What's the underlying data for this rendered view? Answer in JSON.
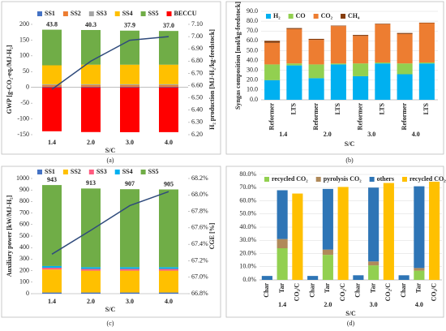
{
  "chart_data": [
    {
      "type": "bar",
      "stacked": true,
      "panel_label": "(a)",
      "x_label": "S/C",
      "y_label": "GWP [g-CO₂-eq./MJ-H₂]",
      "y2_label": "H₂ production [MJ-H₂/kg-feedstock]",
      "categories": [
        "1.4",
        "2.0",
        "3.0",
        "4.0"
      ],
      "series": [
        {
          "name": "SS1",
          "color": "#4472c4",
          "values": [
            2,
            2,
            2,
            2
          ]
        },
        {
          "name": "SS2",
          "color": "#ed7d31",
          "values": [
            5,
            5,
            5,
            5
          ]
        },
        {
          "name": "SS3",
          "color": "#a5a5a5",
          "values": [
            3,
            3,
            3,
            3
          ]
        },
        {
          "name": "SS4",
          "color": "#ffc000",
          "values": [
            60,
            62,
            62,
            62
          ]
        },
        {
          "name": "SS5",
          "color": "#70ad47",
          "values": [
            113,
            110,
            108,
            107
          ]
        },
        {
          "name": "BECCU",
          "color": "#ff0000",
          "values": [
            -139.2,
            -141.7,
            -142.1,
            -142
          ]
        },
        {
          "type": "line",
          "axis": "y2",
          "color": "#2f4b7c",
          "values": [
            6.57,
            6.8,
            6.97,
            7.0
          ]
        }
      ],
      "totals": [
        43.8,
        40.3,
        37.9,
        37.0
      ],
      "total_labels": [
        "43.8",
        "40.3",
        "37.9",
        "37.0"
      ],
      "ylim": [
        -150,
        200
      ],
      "yticks": [
        -150,
        -100,
        -50,
        0,
        50,
        100,
        150,
        200
      ],
      "y2lim": [
        6.2,
        7.1
      ],
      "y2ticks": [
        {
          "value": 6.2,
          "label": "6.20"
        },
        {
          "value": 6.3,
          "label": "6.30"
        },
        {
          "value": 6.4,
          "label": "6.40"
        },
        {
          "value": 6.5,
          "label": "6.50"
        },
        {
          "value": 6.6,
          "label": "6.60"
        },
        {
          "value": 6.7,
          "label": "6.70"
        },
        {
          "value": 6.8,
          "label": "6.80"
        },
        {
          "value": 6.9,
          "label": "6.90"
        },
        {
          "value": 7.0,
          "label": "7.00"
        },
        {
          "value": 7.1,
          "label": "7.10"
        }
      ],
      "grid": false
    },
    {
      "type": "bar",
      "stacked": true,
      "panel_label": "(b)",
      "x_label": "S/C",
      "y_label": "Syngas composition [mol/kg-feedstock]",
      "groups": [
        "1.4",
        "2.0",
        "3.0",
        "4.0"
      ],
      "categories": [
        "Reformer",
        "LTS",
        "Reformer",
        "LTS",
        "Reformer",
        "LTS",
        "Reformer",
        "LTS"
      ],
      "series": [
        {
          "name": "H₂",
          "color": "#00b0f0",
          "values": [
            20,
            35,
            22,
            36,
            24,
            37,
            26,
            37
          ]
        },
        {
          "name": "CO",
          "color": "#92d050",
          "values": [
            16,
            2,
            14,
            1,
            13,
            1,
            11,
            1
          ]
        },
        {
          "name": "CO₂",
          "color": "#ed7d31",
          "values": [
            22,
            35,
            25,
            38,
            28,
            39,
            30,
            40
          ]
        },
        {
          "name": "CH₄",
          "color": "#843c0c",
          "values": [
            2,
            1,
            1,
            0.5,
            1,
            0.5,
            1,
            0.5
          ]
        }
      ],
      "ylim": [
        0,
        90
      ],
      "yticks": [
        {
          "value": 0,
          "label": "0.0"
        },
        {
          "value": 10,
          "label": "10.0"
        },
        {
          "value": 20,
          "label": "20.0"
        },
        {
          "value": 30,
          "label": "30.0"
        },
        {
          "value": 40,
          "label": "40.0"
        },
        {
          "value": 50,
          "label": "50.0"
        },
        {
          "value": 60,
          "label": "60.0"
        },
        {
          "value": 70,
          "label": "70.0"
        },
        {
          "value": 80,
          "label": "80.0"
        },
        {
          "value": 90,
          "label": "90.0"
        }
      ],
      "grid": true
    },
    {
      "type": "bar",
      "stacked": true,
      "panel_label": "(c)",
      "x_label": "S/C",
      "y_label": "Auxiliary power [kW/MJ-H₂]",
      "y2_label": "CGE [%]",
      "categories": [
        "1.4",
        "2.0",
        "3.0",
        "4.0"
      ],
      "series": [
        {
          "name": "SS1",
          "color": "#4472c4",
          "values": [
            10,
            10,
            10,
            10
          ]
        },
        {
          "name": "SS2",
          "color": "#ffc000",
          "values": [
            200,
            190,
            190,
            190
          ]
        },
        {
          "name": "SS3",
          "color": "#ff5b7f",
          "values": [
            15,
            15,
            15,
            15
          ]
        },
        {
          "name": "SS4",
          "color": "#00b0f0",
          "values": [
            15,
            15,
            15,
            15
          ]
        },
        {
          "name": "SS5",
          "color": "#70ad47",
          "values": [
            703,
            683,
            677,
            675
          ]
        },
        {
          "type": "line",
          "axis": "y2",
          "color": "#2f4b7c",
          "values": [
            67.28,
            67.57,
            67.87,
            68.04
          ]
        }
      ],
      "totals": [
        943,
        913,
        907,
        905
      ],
      "ylim": [
        0,
        1000
      ],
      "yticks": [
        0,
        100,
        200,
        300,
        400,
        500,
        600,
        700,
        800,
        900,
        1000
      ],
      "y2lim": [
        66.8,
        68.2
      ],
      "y2ticks": [
        {
          "value": 66.8,
          "label": "66.8%"
        },
        {
          "value": 67.0,
          "label": "67.0%"
        },
        {
          "value": 67.2,
          "label": "67.2%"
        },
        {
          "value": 67.4,
          "label": "67.4%"
        },
        {
          "value": 67.6,
          "label": "67.6%"
        },
        {
          "value": 67.8,
          "label": "67.8%"
        },
        {
          "value": 68.0,
          "label": "68.0%"
        },
        {
          "value": 68.2,
          "label": "68.2%"
        }
      ],
      "grid": false
    },
    {
      "type": "bar",
      "stacked": true,
      "panel_label": "(d)",
      "x_label": "S/C",
      "groups": [
        "1.4",
        "2.0",
        "3.0",
        "4.0"
      ],
      "categories": [
        "Char",
        "Tar",
        "CO₂/C",
        "Char",
        "Tar",
        "CO₂/C",
        "Char",
        "Tar",
        "CO₂/C",
        "Char",
        "Tar",
        "CO₂/C"
      ],
      "series": [
        {
          "name": "recycled CO₂",
          "color": "#92d050",
          "values": [
            null,
            24,
            null,
            null,
            19,
            null,
            null,
            11,
            null,
            null,
            7,
            null
          ]
        },
        {
          "name": "pyrolysis CO₂",
          "color": "#b08a5a",
          "values": [
            null,
            7,
            null,
            null,
            4,
            null,
            null,
            3,
            null,
            null,
            2,
            null
          ]
        },
        {
          "name": "others",
          "color": "#2e75b6",
          "values": [
            3,
            37,
            null,
            3,
            46,
            null,
            3.5,
            56,
            null,
            3.5,
            62,
            null
          ]
        },
        {
          "name": "recycled CO₂/C",
          "color": "#ffc000",
          "values": [
            null,
            null,
            65.5,
            null,
            null,
            70.5,
            null,
            null,
            73.5,
            null,
            null,
            74.5
          ]
        }
      ],
      "ylim": [
        0,
        80
      ],
      "yticks": [
        {
          "value": 0,
          "label": "0.0%"
        },
        {
          "value": 10,
          "label": "10.0%"
        },
        {
          "value": 20,
          "label": "20.0%"
        },
        {
          "value": 30,
          "label": "30.0%"
        },
        {
          "value": 40,
          "label": "40.0%"
        },
        {
          "value": 50,
          "label": "50.0%"
        },
        {
          "value": 60,
          "label": "60.0%"
        },
        {
          "value": 70,
          "label": "70.0%"
        },
        {
          "value": 80,
          "label": "80.0%"
        }
      ],
      "grid": true
    }
  ]
}
